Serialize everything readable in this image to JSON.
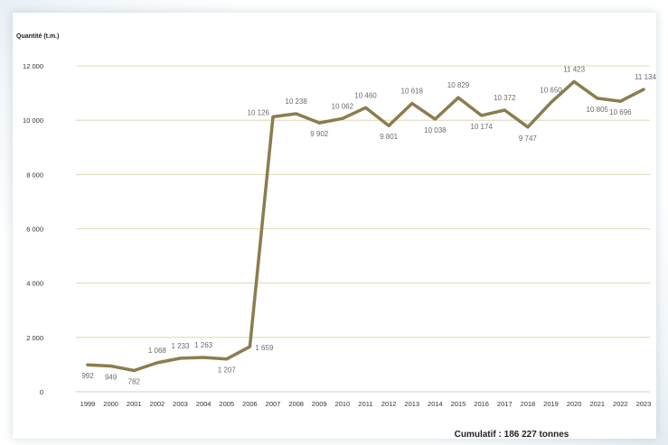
{
  "chart_data": {
    "type": "line",
    "title": "",
    "ylabel": "Quantité (t.m.)",
    "xlabel": "",
    "ylim": [
      0,
      12000
    ],
    "yticks": [
      0,
      2000,
      4000,
      6000,
      8000,
      10000,
      12000
    ],
    "ytick_labels": [
      "0",
      "2 000",
      "4 000",
      "6 000",
      "8 000",
      "10 000",
      "12 000"
    ],
    "grid": "horizontal",
    "categories": [
      "1999",
      "2000",
      "2001",
      "2002",
      "2003",
      "2004",
      "2005",
      "2006",
      "2007",
      "2008",
      "2009",
      "2010",
      "2011",
      "2012",
      "2013",
      "2014",
      "2015",
      "2016",
      "2017",
      "2018",
      "2019",
      "2020",
      "2021",
      "2022",
      "2023"
    ],
    "series": [
      {
        "values": [
          992,
          949,
          782,
          1068,
          1233,
          1263,
          1207,
          1659,
          10126,
          10238,
          9902,
          10062,
          10460,
          9801,
          10618,
          10038,
          10829,
          10174,
          10372,
          9747,
          10650,
          11423,
          10805,
          10696,
          11134
        ],
        "labels": [
          "992",
          "949",
          "782",
          "1 068",
          "1 233",
          "1 263",
          "1 207",
          "1 659",
          "10 126",
          "10 238",
          "9 902",
          "10 062",
          "10 460",
          "9 801",
          "10 618",
          "10 038",
          "10 829",
          "10 174",
          "10 372",
          "9 747",
          "10 650",
          "11 423",
          "10 805",
          "10 696",
          "11 134"
        ],
        "color": "#8b7d4f"
      }
    ],
    "gridline_color": "#d8d1a8",
    "axis_color": "#bfbfbf",
    "footer_note": "Cumulatif : 186 227 tonnes"
  }
}
